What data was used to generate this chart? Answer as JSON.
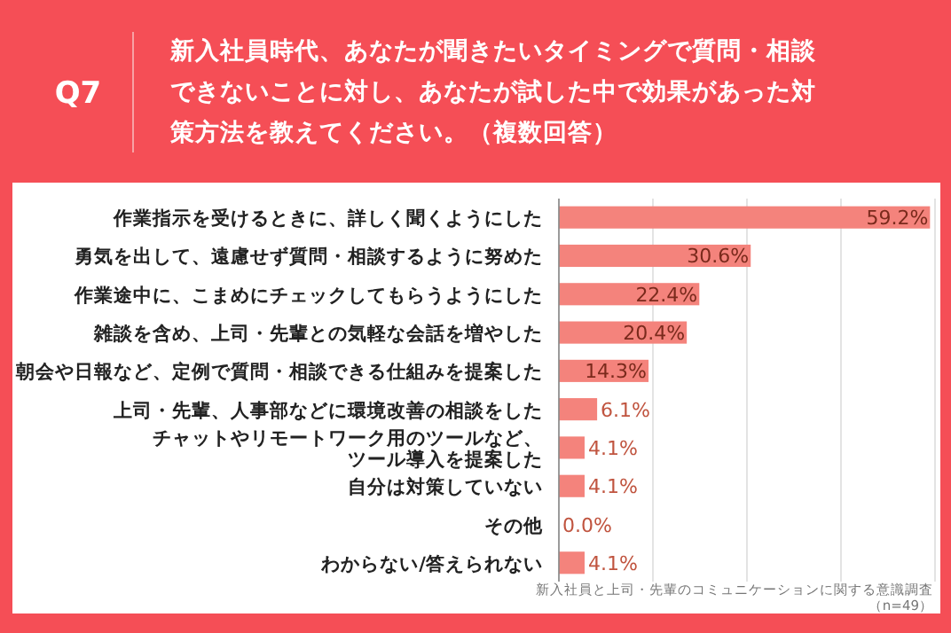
{
  "chart_data": {
    "type": "bar",
    "orientation": "horizontal",
    "title": "新入社員時代、あなたが聞きたいタイミングで質問・相談できないことに対し、あなたが試した中で効果があった対策方法を教えてください。（複数回答）",
    "subtitle": "Q7",
    "categories": [
      "作業指示を受けるときに、詳しく聞くようにした",
      "勇気を出して、遠慮せず質問・相談するように努めた",
      "作業途中に、こまめにチェックしてもらうようにした",
      "雑談を含め、上司・先輩との気軽な会話を増やした",
      "朝会や日報など、定例で質問・相談できる仕組みを提案した",
      "上司・先輩、人事部などに環境改善の相談をした",
      "チャットやリモートワーク用のツールなど、ツール導入を提案した",
      "自分は対策していない",
      "その他",
      "わからない/答えられない"
    ],
    "values": [
      59.2,
      30.6,
      22.4,
      20.4,
      14.3,
      6.1,
      4.1,
      4.1,
      0.0,
      4.1
    ],
    "value_labels": [
      "59.2%",
      "30.6%",
      "22.4%",
      "20.4%",
      "14.3%",
      "6.1%",
      "4.1%",
      "4.1%",
      "0.0%",
      "4.1%"
    ],
    "color": "#f4837c",
    "xlim": [
      0,
      60
    ],
    "xticks": [
      {
        "value": 0,
        "label": null
      },
      {
        "value": 15,
        "label": null
      },
      {
        "value": 30,
        "label": null
      },
      {
        "value": 45,
        "label": null
      },
      {
        "value": 60,
        "label": null
      }
    ],
    "grid": "x",
    "tick_labels": "y",
    "annotations": [
      "新入社員と上司・先輩のコミュニケーションに関する意識調査",
      "（n=49）"
    ]
  }
}
